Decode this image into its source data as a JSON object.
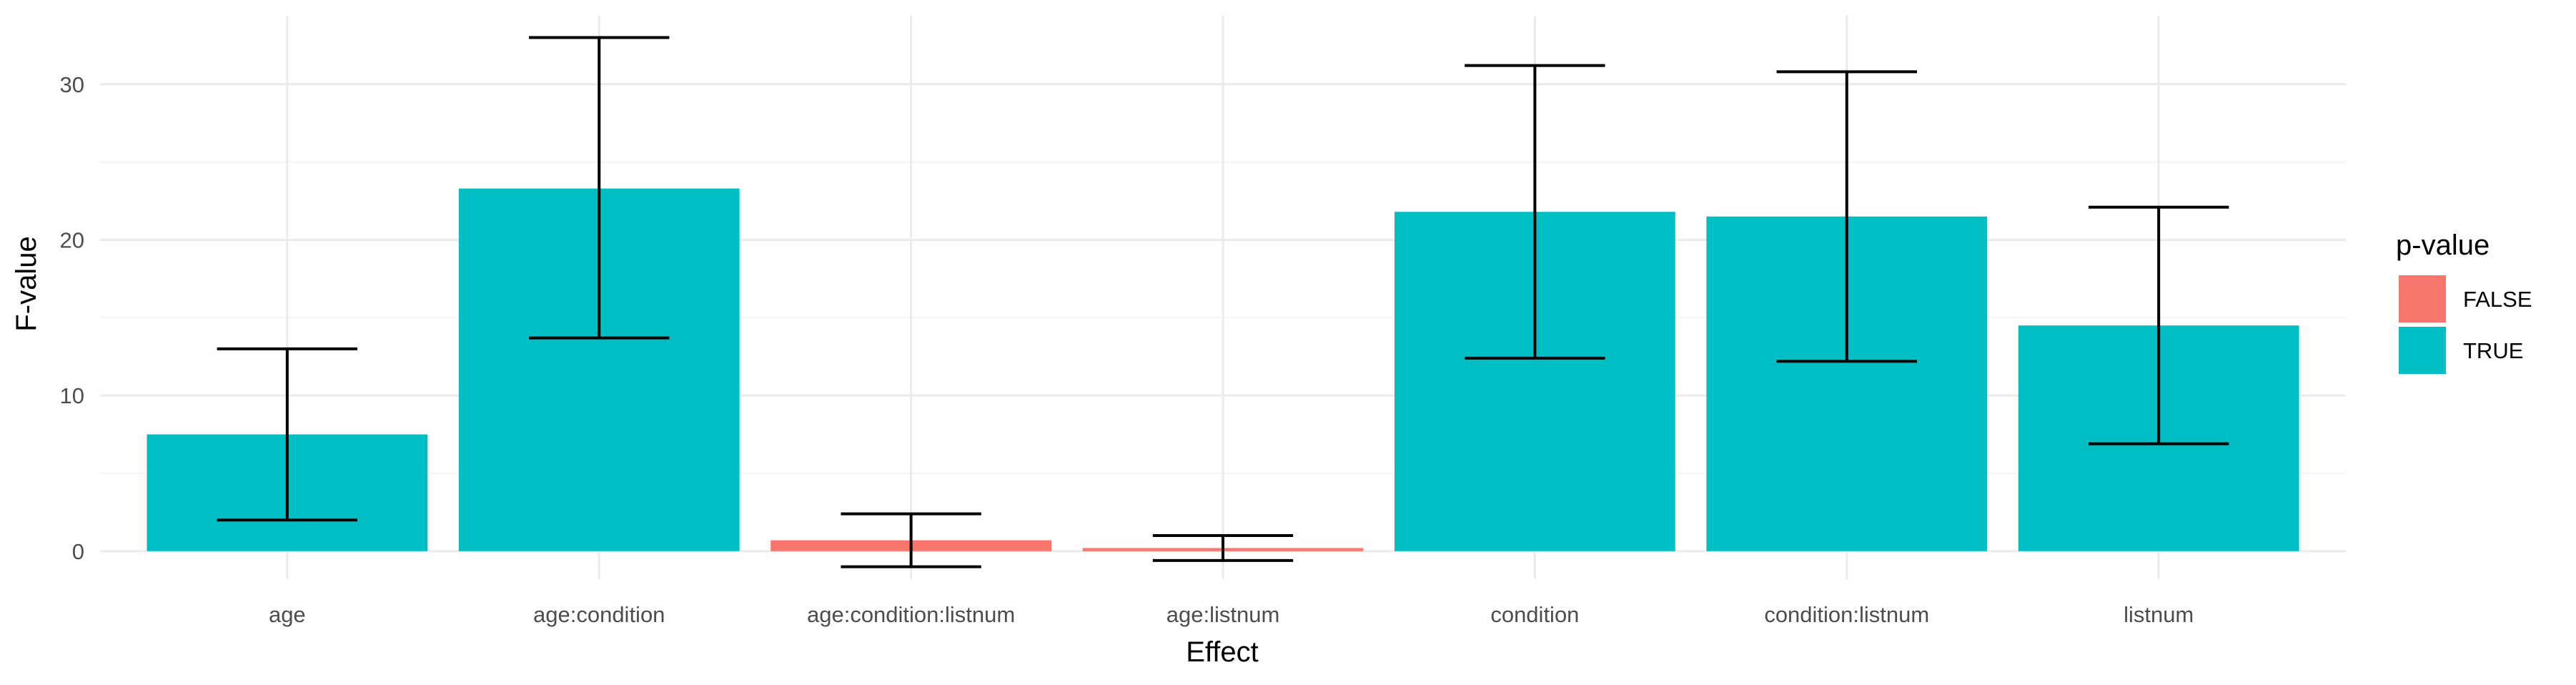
{
  "chart_data": {
    "type": "bar",
    "title": "",
    "xlabel": "Effect",
    "ylabel": "F-value",
    "ylim": [
      -1.8,
      34.4
    ],
    "yticks": [
      0,
      10,
      20,
      30
    ],
    "ytick_labels": [
      "0",
      "10",
      "20",
      "30"
    ],
    "grid": true,
    "legend_position": "right",
    "legend": {
      "title": "p-value",
      "entries": [
        {
          "label": "FALSE",
          "color": "#F8766D"
        },
        {
          "label": "TRUE",
          "color": "#00BFC4"
        }
      ]
    },
    "categories": [
      "age",
      "age:condition",
      "age:condition:listnum",
      "age:listnum",
      "condition",
      "condition:listnum",
      "listnum"
    ],
    "values": [
      7.5,
      23.3,
      0.7,
      0.2,
      21.8,
      21.5,
      14.5
    ],
    "error_low": [
      2.0,
      13.7,
      -1.0,
      -0.6,
      12.4,
      12.2,
      6.9
    ],
    "error_high": [
      13.0,
      33.0,
      2.4,
      1.0,
      31.2,
      30.8,
      22.1
    ],
    "significant": [
      "TRUE",
      "TRUE",
      "FALSE",
      "FALSE",
      "TRUE",
      "TRUE",
      "TRUE"
    ],
    "colors": {
      "TRUE": "#00BFC4",
      "FALSE": "#F8766D",
      "grid_major": "#EBEBEB",
      "grid_minor": "#F5F5F5",
      "errorbar": "#000000"
    }
  }
}
